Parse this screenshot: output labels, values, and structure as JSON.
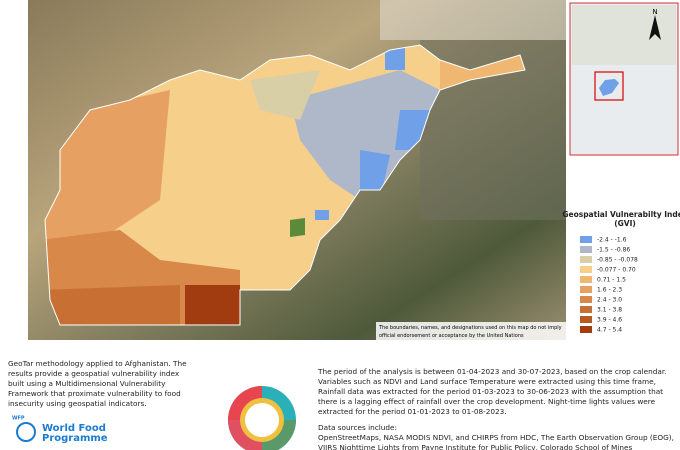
{
  "legend": {
    "title_lines": [
      "Geospatial Vulnerabilty Index",
      "(GVI)"
    ],
    "items": [
      {
        "label": "-2.4 - -1.6",
        "color": "#6fa0e8"
      },
      {
        "label": "-1.5 - -0.86",
        "color": "#aeb8c8"
      },
      {
        "label": "-0.85 - -0.078",
        "color": "#d9cfa6"
      },
      {
        "label": "-0.077 - 0.70",
        "color": "#f6cf8a"
      },
      {
        "label": "0.71 - 1.5",
        "color": "#f0b772"
      },
      {
        "label": "1.6 - 2.3",
        "color": "#e6a062"
      },
      {
        "label": "2.4 - 3.0",
        "color": "#d88848"
      },
      {
        "label": "3.1 - 3.8",
        "color": "#c87034"
      },
      {
        "label": "3.9 - 4.6",
        "color": "#b65a22"
      },
      {
        "label": "4.7 - 5.4",
        "color": "#a03c10"
      }
    ]
  },
  "map": {
    "disclaimer": [
      "The boundaries, names, and designations used on this map do not imply",
      "official endorsement or acceptance by the United Nations"
    ],
    "north": "N"
  },
  "intro": [
    "GeoTar methodology applied to Afghanistan. The",
    "results  provide a geospatial vulnerability index",
    "built using a Multidimensional Vulnerability",
    "Framework that proximate vulnerability to food",
    "insecurity using geospatial indicators."
  ],
  "logo": {
    "abbr": "WFP",
    "name_lines": [
      "World Food",
      "Programme"
    ]
  },
  "methods": {
    "period": [
      "The period of the analysis is between 01-04-2023 and 30-07-2023, based on the crop calendar.",
      "Variables such as NDVI and Land surface Temperature were extracted using this time frame,",
      "Rainfall data was extracted for the period 01-03-2023 to 30-06-2023 with the assumption that",
      "there is a lagging effect of rainfall over the crop development. Night-time lights values were",
      "extracted for the period 01-01-2023 to 01-08-2023."
    ],
    "sources_title": "Data sources include:",
    "sources": [
      "OpenStreetMaps, NASA MODIS NDVI, and CHIRPS from HDC, The Earth Observation Group (EOG),",
      "VIIRS Nighttime Lights from Payne Institute for Public Policy, Colorado School of Mines"
    ]
  }
}
